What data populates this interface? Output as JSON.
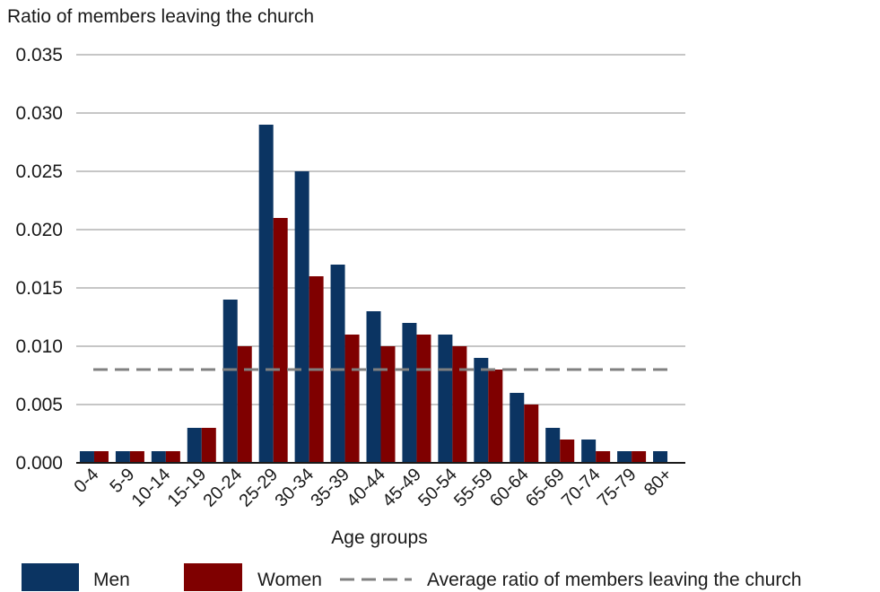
{
  "chart_data": {
    "type": "bar",
    "ylabel": "Ratio of members leaving the church",
    "xlabel": "Age groups",
    "categories": [
      "0-4",
      "5-9",
      "10-14",
      "15-19",
      "20-24",
      "25-29",
      "30-34",
      "35-39",
      "40-44",
      "45-49",
      "50-54",
      "55-59",
      "60-64",
      "65-69",
      "70-74",
      "75-79",
      "80+"
    ],
    "series": [
      {
        "name": "Men",
        "color": "#0b3462",
        "values": [
          0.001,
          0.001,
          0.001,
          0.003,
          0.014,
          0.029,
          0.025,
          0.017,
          0.013,
          0.012,
          0.011,
          0.009,
          0.006,
          0.003,
          0.002,
          0.001,
          0.001
        ]
      },
      {
        "name": "Women",
        "color": "#7f0000",
        "values": [
          0.001,
          0.001,
          0.001,
          0.003,
          0.01,
          0.021,
          0.016,
          0.011,
          0.01,
          0.011,
          0.01,
          0.008,
          0.005,
          0.002,
          0.001,
          0.001,
          null
        ]
      }
    ],
    "average_line": {
      "name": "Average ratio of members leaving the church",
      "value": 0.008,
      "color": "#808080",
      "style": "dashed"
    },
    "ylim": [
      0,
      0.035
    ],
    "yticks": [
      "0.000",
      "0.005",
      "0.010",
      "0.015",
      "0.020",
      "0.025",
      "0.030",
      "0.035"
    ],
    "grid": true,
    "legend_position": "bottom"
  }
}
